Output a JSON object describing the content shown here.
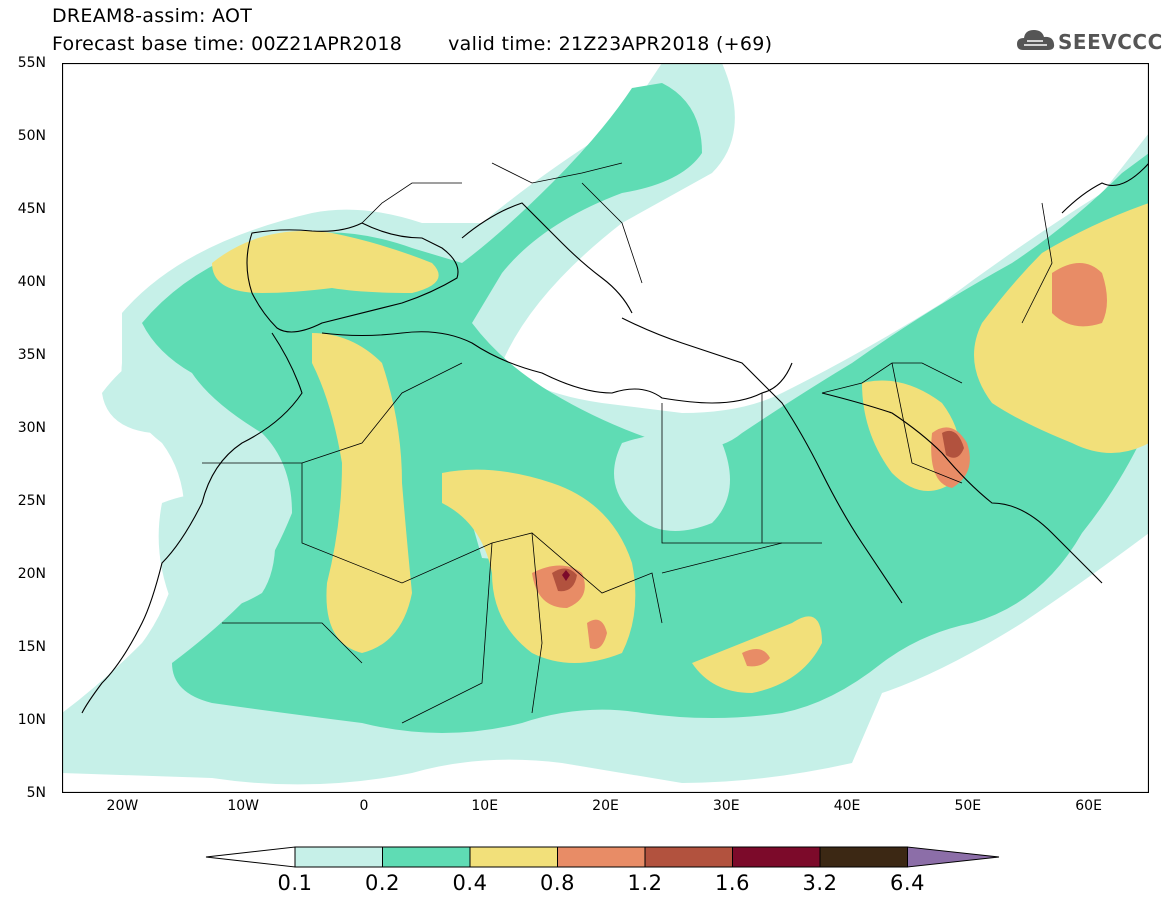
{
  "title": {
    "line1": "DREAM8-assim: AOT",
    "forecast_base": "Forecast base time: 00Z21APR2018",
    "valid_time": "valid time: 21Z23APR2018 (+69)"
  },
  "logo": {
    "icon": "cloud-icon",
    "text": "SEEVCCC"
  },
  "map": {
    "lat_range": [
      5,
      55
    ],
    "lon_range": [
      -25,
      65
    ],
    "lat_ticks": [
      "55N",
      "50N",
      "45N",
      "40N",
      "35N",
      "30N",
      "25N",
      "20N",
      "15N",
      "10N",
      "5N"
    ],
    "lon_ticks": [
      "20W",
      "10W",
      "0",
      "10E",
      "20E",
      "30E",
      "40E",
      "50E",
      "60E"
    ]
  },
  "colorbar": {
    "labels": [
      "0.1",
      "0.2",
      "0.4",
      "0.8",
      "1.2",
      "1.6",
      "3.2",
      "6.4"
    ],
    "colors": [
      "#ffffff",
      "#c6f0e8",
      "#5fdcb4",
      "#f2e07a",
      "#e88c66",
      "#b2523e",
      "#7c0a2a",
      "#3c2814",
      "#8c6ea8"
    ]
  }
}
